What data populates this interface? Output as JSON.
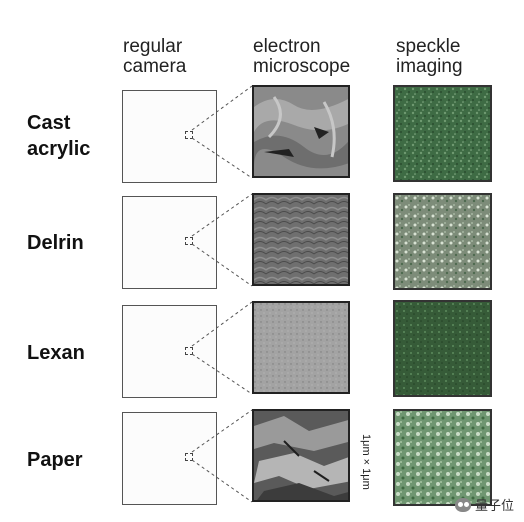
{
  "columns": {
    "camera": "regular\ncamera",
    "em": "electron\nmicroscope",
    "speckle": "speckle\nimaging"
  },
  "rows": [
    {
      "label": "Cast\nacrylic",
      "speckle_color": "#3f6b45",
      "em_color": "#7a7a7a"
    },
    {
      "label": "Delrin",
      "speckle_color": "#7f8f7c",
      "em_color": "#6b6b6b"
    },
    {
      "label": "Lexan",
      "speckle_color": "#355a37",
      "em_color": "#9b9b9b"
    },
    {
      "label": "Paper",
      "speckle_color": "#7fa480",
      "em_color": "#5d5d5d"
    }
  ],
  "scale_note": "1μm × 1μm",
  "logo_text": "量子位"
}
